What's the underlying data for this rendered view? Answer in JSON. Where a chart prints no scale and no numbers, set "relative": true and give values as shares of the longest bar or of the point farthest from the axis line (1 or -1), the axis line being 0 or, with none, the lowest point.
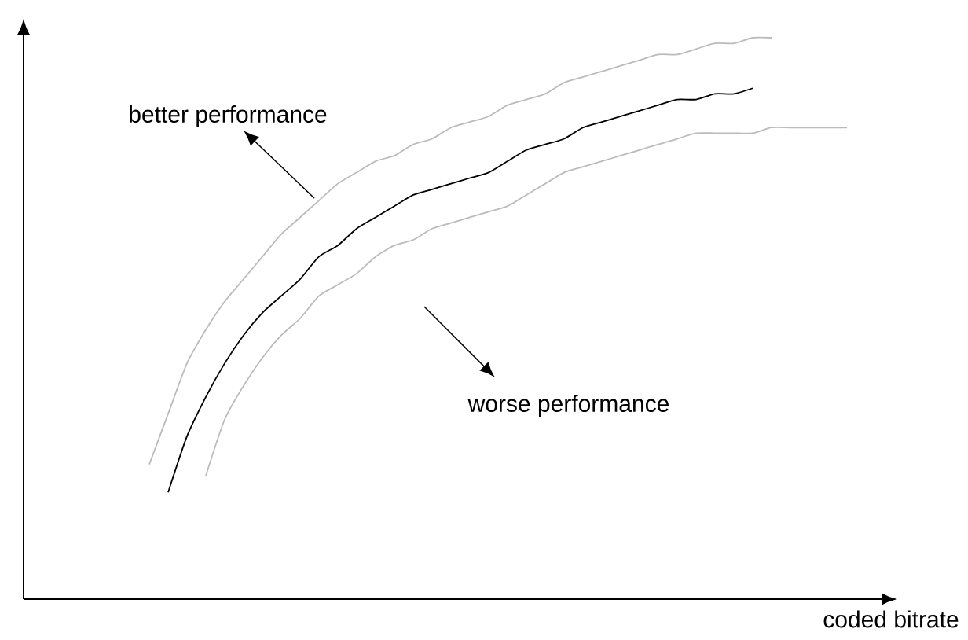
{
  "chart_data": {
    "type": "line",
    "relative": true,
    "xlabel": "coded bitrate",
    "annotations": [
      "better performance",
      "worse performance"
    ],
    "categories": [
      null,
      null,
      null,
      null,
      null,
      null,
      null,
      null,
      null,
      null,
      null,
      null,
      null,
      null,
      null,
      null,
      null,
      null,
      null,
      null,
      null,
      null,
      null,
      null,
      null,
      null,
      null,
      null,
      null,
      null,
      null,
      null,
      null,
      null,
      null,
      null,
      null,
      null
    ],
    "series": [
      {
        "color": "#bbbbbb",
        "values": [
          0.24,
          0.33,
          0.42,
          0.48,
          0.53,
          0.57,
          0.61,
          0.65,
          0.68,
          0.71,
          0.74,
          0.76,
          0.78,
          0.79,
          0.81,
          0.82,
          0.84,
          0.85,
          0.86,
          0.88,
          0.89,
          0.9,
          0.92,
          0.93,
          0.94,
          0.95,
          0.96,
          0.97,
          0.97,
          0.98,
          0.99,
          0.99,
          1.0,
          1.0,
          null,
          null,
          null,
          null
        ]
      },
      {
        "color": "#000000",
        "values": [
          null,
          0.19,
          0.29,
          0.36,
          0.42,
          0.47,
          0.51,
          0.54,
          0.57,
          0.61,
          0.63,
          0.66,
          0.68,
          0.7,
          0.72,
          0.73,
          0.74,
          0.75,
          0.76,
          0.78,
          0.8,
          0.81,
          0.82,
          0.84,
          0.85,
          0.86,
          0.87,
          0.88,
          0.89,
          0.89,
          0.9,
          0.9,
          0.91,
          null,
          null,
          null,
          null,
          null
        ]
      },
      {
        "color": "#bbbbbb",
        "values": [
          null,
          null,
          null,
          0.22,
          0.32,
          0.38,
          0.43,
          0.47,
          0.5,
          0.54,
          0.56,
          0.58,
          0.61,
          0.63,
          0.64,
          0.66,
          0.67,
          0.68,
          0.69,
          0.7,
          0.72,
          0.74,
          0.76,
          0.77,
          0.78,
          0.79,
          0.8,
          0.81,
          0.82,
          0.83,
          0.83,
          0.83,
          0.83,
          0.84,
          0.84,
          0.84,
          0.84,
          0.84
        ]
      }
    ]
  }
}
